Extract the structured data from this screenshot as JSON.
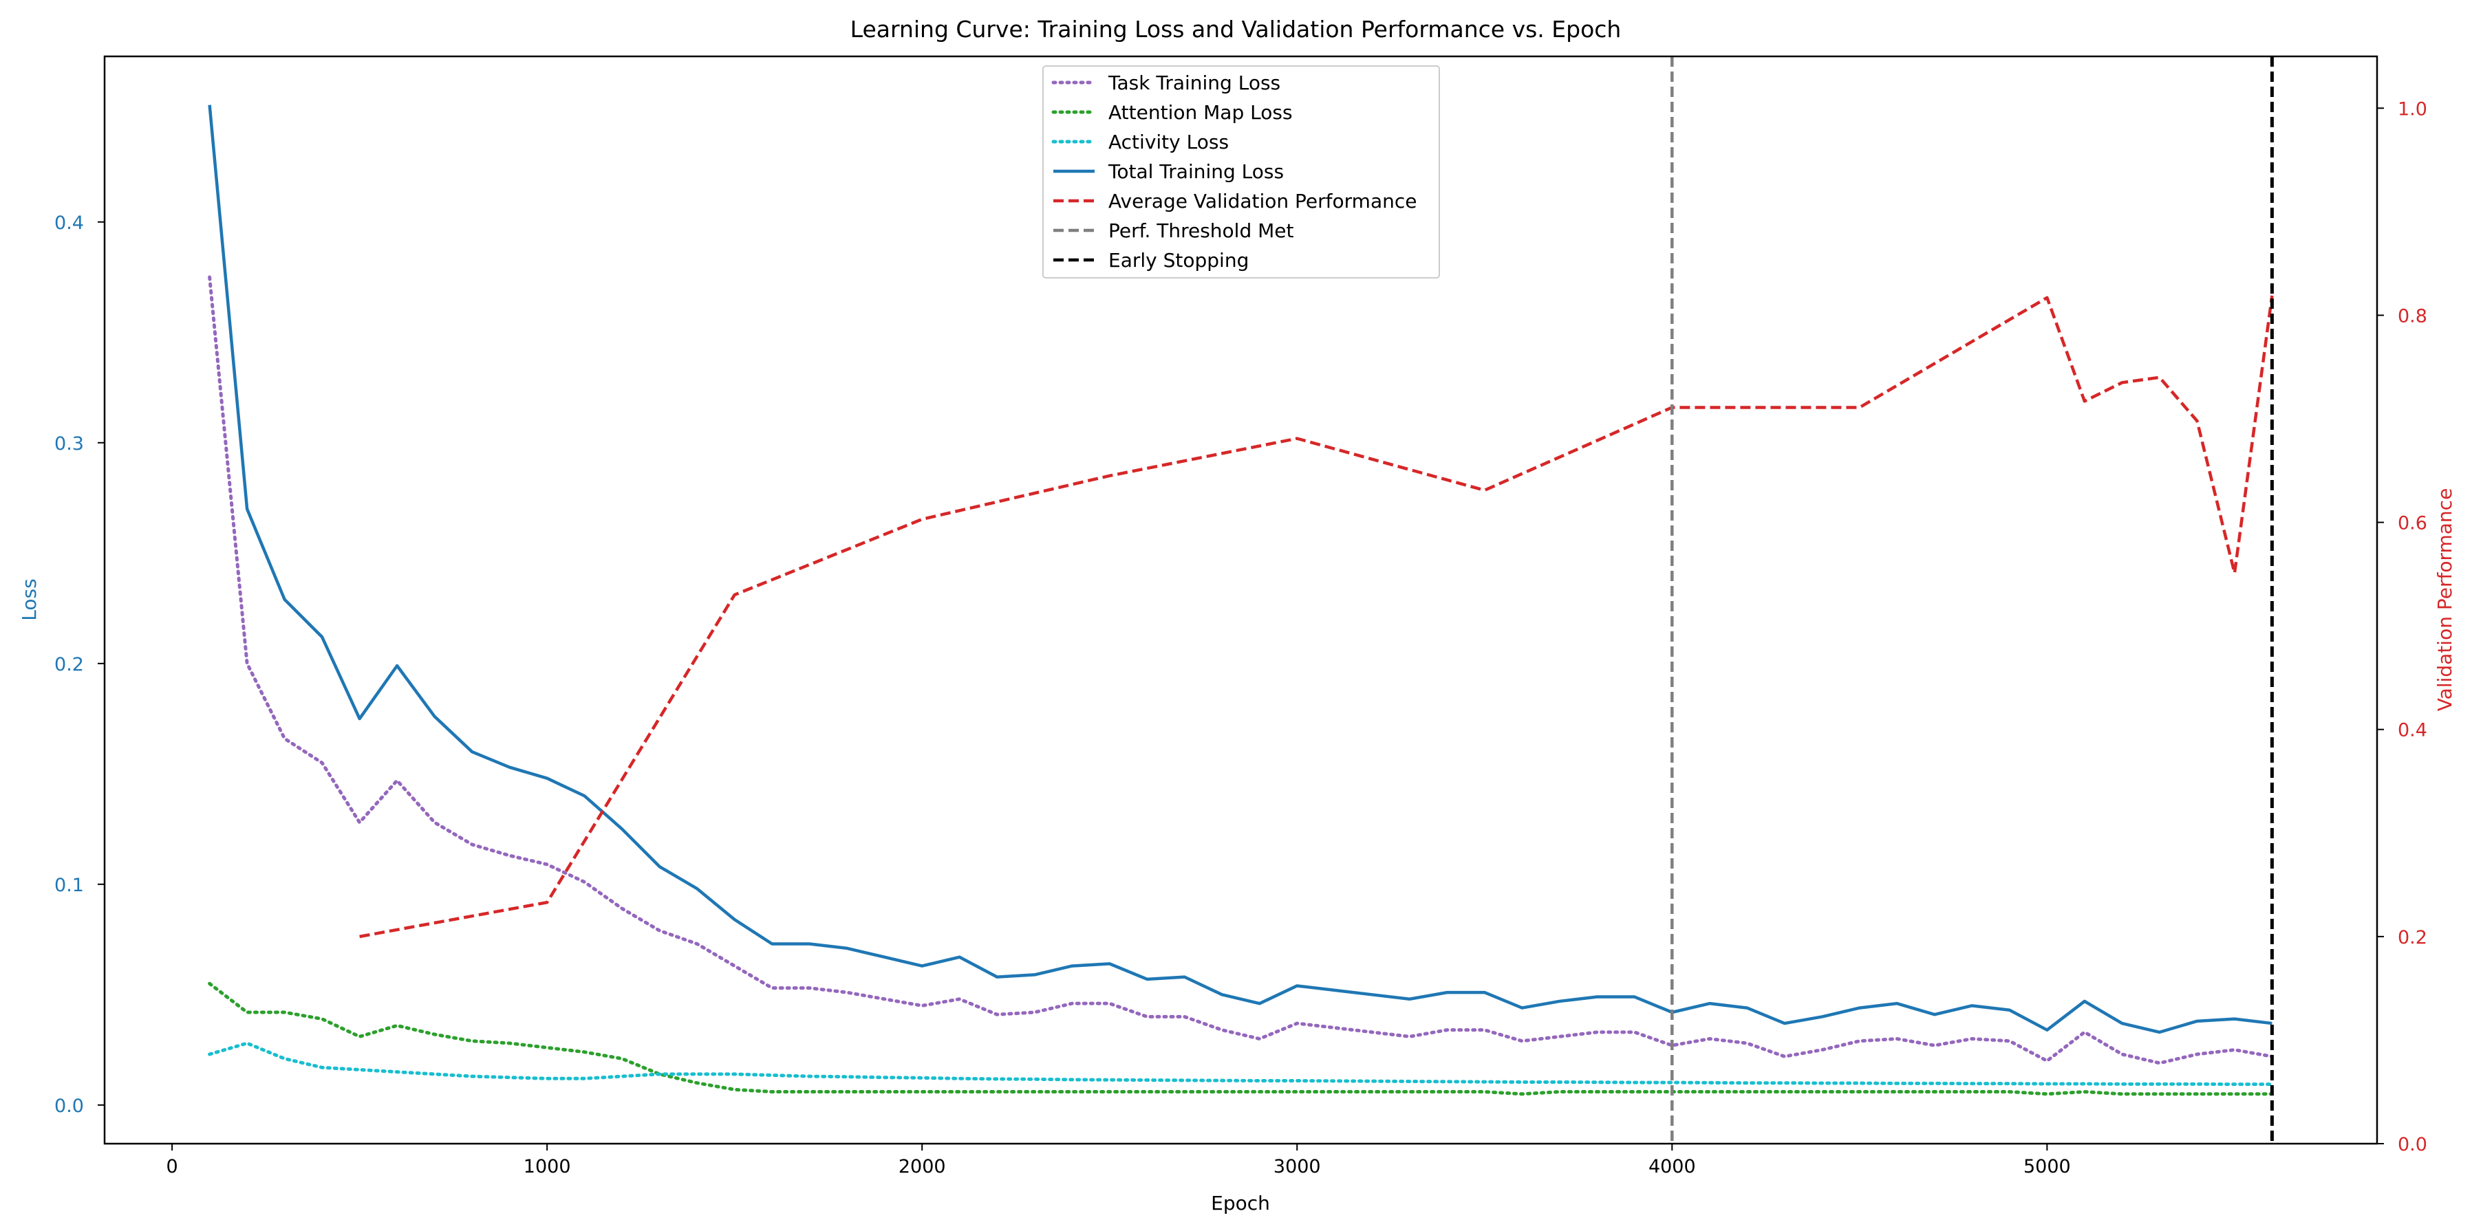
{
  "chart_data": {
    "type": "line",
    "title": "Learning Curve: Training Loss and Validation Performance vs. Epoch",
    "xlabel": "Epoch",
    "ylabel_left": "Loss",
    "ylabel_right": "Validation Performance",
    "xlim": [
      -180,
      5880
    ],
    "ylim_left": [
      -0.0175,
      0.475
    ],
    "ylim_right": [
      0.0,
      1.05
    ],
    "x_ticks": [
      0,
      1000,
      2000,
      3000,
      4000,
      5000
    ],
    "y_ticks_left": [
      0.0,
      0.1,
      0.2,
      0.3,
      0.4
    ],
    "y_ticks_right": [
      0.0,
      0.2,
      0.4,
      0.6,
      0.8,
      1.0
    ],
    "grid": false,
    "legend_position": "upper center",
    "colors": {
      "task": "#9467bd",
      "attention": "#2ca02c",
      "activity": "#17becf",
      "total": "#1f77b4",
      "validation": "#d62728",
      "threshold": "#7f7f7f",
      "early_stop": "#000000",
      "left_axis": "#1f77b4",
      "right_axis": "#d62728"
    },
    "series": [
      {
        "name": "Task Training Loss",
        "axis": "left",
        "style": "dotted",
        "color_key": "task",
        "x": [
          100,
          200,
          300,
          400,
          500,
          600,
          700,
          800,
          900,
          1000,
          1100,
          1200,
          1300,
          1400,
          1500,
          1600,
          1700,
          1800,
          1900,
          2000,
          2100,
          2200,
          2300,
          2400,
          2500,
          2600,
          2700,
          2800,
          2900,
          3000,
          3100,
          3200,
          3300,
          3400,
          3500,
          3600,
          3700,
          3800,
          3900,
          4000,
          4100,
          4200,
          4300,
          4400,
          4500,
          4600,
          4700,
          4800,
          4900,
          5000,
          5100,
          5200,
          5300,
          5400,
          5500,
          5600
        ],
        "values": [
          0.375,
          0.2,
          0.166,
          0.155,
          0.128,
          0.147,
          0.128,
          0.118,
          0.113,
          0.109,
          0.101,
          0.089,
          0.079,
          0.073,
          0.063,
          0.053,
          0.053,
          0.051,
          0.048,
          0.045,
          0.048,
          0.041,
          0.042,
          0.046,
          0.046,
          0.04,
          0.04,
          0.034,
          0.03,
          0.037,
          0.035,
          0.033,
          0.031,
          0.034,
          0.034,
          0.029,
          0.031,
          0.033,
          0.033,
          0.027,
          0.03,
          0.028,
          0.022,
          0.025,
          0.029,
          0.03,
          0.027,
          0.03,
          0.029,
          0.02,
          0.033,
          0.023,
          0.019,
          0.023,
          0.025,
          0.022
        ]
      },
      {
        "name": "Attention Map Loss",
        "axis": "left",
        "style": "dotted",
        "color_key": "attention",
        "x": [
          100,
          200,
          300,
          400,
          500,
          600,
          700,
          800,
          900,
          1000,
          1100,
          1200,
          1300,
          1400,
          1500,
          1600,
          1700,
          1800,
          1900,
          2000,
          2100,
          2200,
          2300,
          2400,
          2500,
          2600,
          2700,
          2800,
          2900,
          3000,
          3100,
          3200,
          3300,
          3400,
          3500,
          3600,
          3700,
          3800,
          3900,
          4000,
          4100,
          4200,
          4300,
          4400,
          4500,
          4600,
          4700,
          4800,
          4900,
          5000,
          5100,
          5200,
          5300,
          5400,
          5500,
          5600
        ],
        "values": [
          0.055,
          0.042,
          0.042,
          0.039,
          0.031,
          0.036,
          0.032,
          0.029,
          0.028,
          0.026,
          0.024,
          0.021,
          0.014,
          0.01,
          0.007,
          0.006,
          0.006,
          0.006,
          0.006,
          0.006,
          0.006,
          0.006,
          0.006,
          0.006,
          0.006,
          0.006,
          0.006,
          0.006,
          0.006,
          0.006,
          0.006,
          0.006,
          0.006,
          0.006,
          0.006,
          0.005,
          0.006,
          0.006,
          0.006,
          0.006,
          0.006,
          0.006,
          0.006,
          0.006,
          0.006,
          0.006,
          0.006,
          0.006,
          0.006,
          0.005,
          0.006,
          0.005,
          0.005,
          0.005,
          0.005,
          0.005
        ]
      },
      {
        "name": "Activity Loss",
        "axis": "left",
        "style": "dotted",
        "color_key": "activity",
        "x": [
          100,
          200,
          300,
          400,
          500,
          600,
          700,
          800,
          900,
          1000,
          1100,
          1200,
          1300,
          1400,
          1500,
          1600,
          1700,
          1800,
          1900,
          2000,
          2100,
          2200,
          2300,
          2400,
          2500,
          2600,
          2700,
          2800,
          2900,
          3000,
          3100,
          3200,
          3300,
          3400,
          3500,
          3600,
          3700,
          3800,
          3900,
          4000,
          4100,
          4200,
          4300,
          4400,
          4500,
          4600,
          4700,
          4800,
          4900,
          5000,
          5100,
          5200,
          5300,
          5400,
          5500,
          5600
        ],
        "values": [
          0.023,
          0.028,
          0.021,
          0.017,
          0.016,
          0.015,
          0.014,
          0.013,
          0.0125,
          0.012,
          0.012,
          0.013,
          0.014,
          0.014,
          0.014,
          0.0135,
          0.013,
          0.0128,
          0.0125,
          0.0123,
          0.012,
          0.0118,
          0.0117,
          0.0115,
          0.0114,
          0.0113,
          0.0112,
          0.0111,
          0.011,
          0.011,
          0.0109,
          0.0108,
          0.0107,
          0.0106,
          0.0105,
          0.0104,
          0.0104,
          0.0103,
          0.0102,
          0.0102,
          0.0101,
          0.01,
          0.01,
          0.0099,
          0.0099,
          0.0098,
          0.0098,
          0.0097,
          0.0097,
          0.0096,
          0.0096,
          0.0095,
          0.0095,
          0.0095,
          0.0094,
          0.0094
        ]
      },
      {
        "name": "Total Training Loss",
        "axis": "left",
        "style": "solid",
        "color_key": "total",
        "x": [
          100,
          200,
          300,
          400,
          500,
          600,
          700,
          800,
          900,
          1000,
          1100,
          1200,
          1300,
          1400,
          1500,
          1600,
          1700,
          1800,
          1900,
          2000,
          2100,
          2200,
          2300,
          2400,
          2500,
          2600,
          2700,
          2800,
          2900,
          3000,
          3100,
          3200,
          3300,
          3400,
          3500,
          3600,
          3700,
          3800,
          3900,
          4000,
          4100,
          4200,
          4300,
          4400,
          4500,
          4600,
          4700,
          4800,
          4900,
          5000,
          5100,
          5200,
          5300,
          5400,
          5500,
          5600
        ],
        "values": [
          0.453,
          0.27,
          0.229,
          0.212,
          0.175,
          0.199,
          0.176,
          0.16,
          0.153,
          0.148,
          0.14,
          0.125,
          0.108,
          0.098,
          0.084,
          0.073,
          0.073,
          0.071,
          0.067,
          0.063,
          0.067,
          0.058,
          0.059,
          0.063,
          0.064,
          0.057,
          0.058,
          0.05,
          0.046,
          0.054,
          0.052,
          0.05,
          0.048,
          0.051,
          0.051,
          0.044,
          0.047,
          0.049,
          0.049,
          0.042,
          0.046,
          0.044,
          0.037,
          0.04,
          0.044,
          0.046,
          0.041,
          0.045,
          0.043,
          0.034,
          0.047,
          0.037,
          0.033,
          0.038,
          0.039,
          0.037
        ]
      },
      {
        "name": "Average Validation Performance",
        "axis": "right",
        "style": "dashed",
        "color_key": "validation",
        "x": [
          500,
          1000,
          1500,
          2000,
          2500,
          3000,
          3500,
          4000,
          4500,
          5000,
          5100,
          5200,
          5300,
          5400,
          5500,
          5600
        ],
        "values": [
          0.2,
          0.233,
          0.53,
          0.603,
          0.645,
          0.681,
          0.631,
          0.711,
          0.711,
          0.817,
          0.717,
          0.735,
          0.74,
          0.698,
          0.551,
          0.819
        ]
      }
    ],
    "vlines": [
      {
        "name": "Perf. Threshold Met",
        "x": 4000,
        "color_key": "threshold"
      },
      {
        "name": "Early Stopping",
        "x": 5600,
        "color_key": "early_stop"
      }
    ],
    "legend": [
      {
        "label": "Task Training Loss",
        "style": "dotted",
        "color_key": "task"
      },
      {
        "label": "Attention Map Loss",
        "style": "dotted",
        "color_key": "attention"
      },
      {
        "label": "Activity Loss",
        "style": "dotted",
        "color_key": "activity"
      },
      {
        "label": "Total Training Loss",
        "style": "solid",
        "color_key": "total"
      },
      {
        "label": "Average Validation Performance",
        "style": "dashed",
        "color_key": "validation"
      },
      {
        "label": "Perf. Threshold Met",
        "style": "dashed",
        "color_key": "threshold"
      },
      {
        "label": "Early Stopping",
        "style": "dashed",
        "color_key": "early_stop"
      }
    ]
  }
}
